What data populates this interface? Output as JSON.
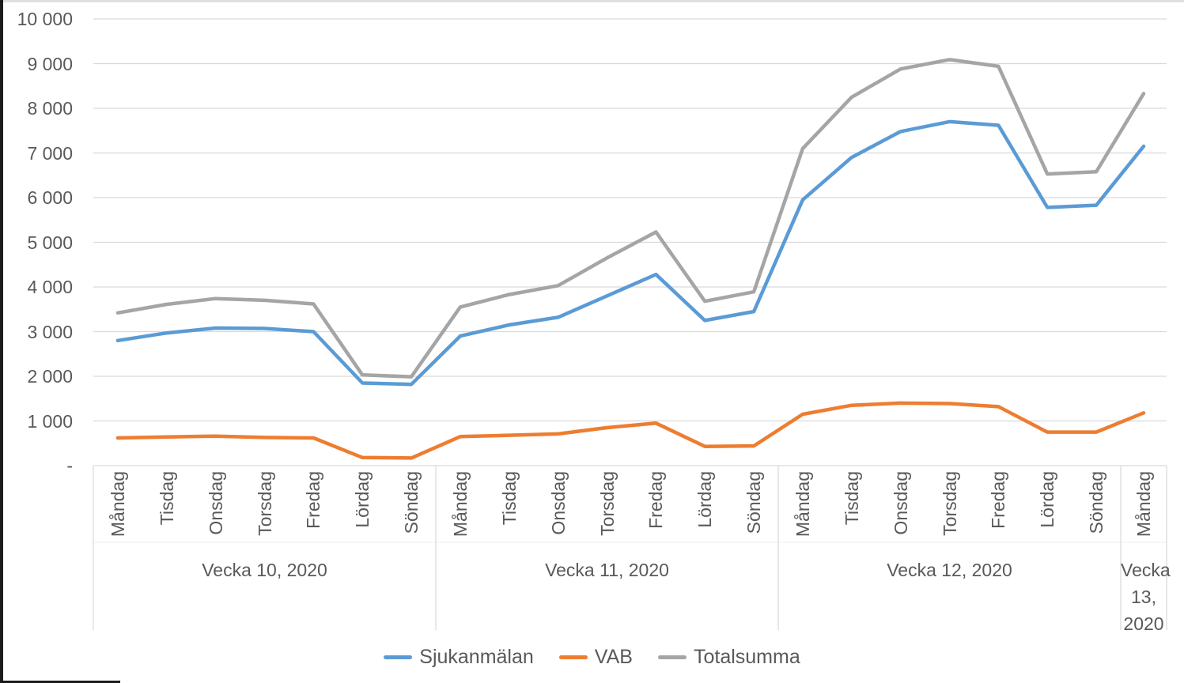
{
  "chart_data": {
    "type": "line",
    "title": "",
    "xlabel": "",
    "ylabel": "",
    "ylim": [
      0,
      10000
    ],
    "grid": true,
    "legend_position": "bottom",
    "ytick_labels": [
      "10 000",
      "9 000",
      "8 000",
      "7 000",
      "6 000",
      "5 000",
      "4 000",
      "3 000",
      "2 000",
      "1 000",
      "-"
    ],
    "x_categories": [
      "Måndag",
      "Tisdag",
      "Onsdag",
      "Torsdag",
      "Fredag",
      "Lördag",
      "Söndag",
      "Måndag",
      "Tisdag",
      "Onsdag",
      "Torsdag",
      "Fredag",
      "Lördag",
      "Söndag",
      "Måndag",
      "Tisdag",
      "Onsdag",
      "Torsdag",
      "Fredag",
      "Lördag",
      "Söndag",
      "Måndag"
    ],
    "week_groups": [
      {
        "label": "Vecka 10, 2020",
        "days": 7
      },
      {
        "label": "Vecka 11, 2020",
        "days": 7
      },
      {
        "label": "Vecka 12, 2020",
        "days": 7
      },
      {
        "label": "Vecka 13, 2020",
        "days": 1
      }
    ],
    "series": [
      {
        "name": "Sjukanmälan",
        "color": "#5B9BD5",
        "values": [
          2800,
          2970,
          3080,
          3070,
          3000,
          1850,
          1820,
          2900,
          3150,
          3320,
          3800,
          4280,
          3250,
          3450,
          5950,
          6900,
          7480,
          7700,
          7620,
          5780,
          5830,
          7150
        ]
      },
      {
        "name": "VAB",
        "color": "#ED7D31",
        "values": [
          620,
          640,
          660,
          630,
          620,
          180,
          170,
          650,
          680,
          710,
          850,
          950,
          430,
          440,
          1150,
          1350,
          1400,
          1390,
          1320,
          750,
          750,
          1180
        ]
      },
      {
        "name": "Totalsumma",
        "color": "#A5A5A5",
        "values": [
          3420,
          3610,
          3740,
          3700,
          3620,
          2030,
          1990,
          3550,
          3830,
          4030,
          4650,
          5230,
          3680,
          3890,
          7100,
          8250,
          8880,
          9090,
          8940,
          6530,
          6580,
          8330
        ]
      }
    ]
  }
}
